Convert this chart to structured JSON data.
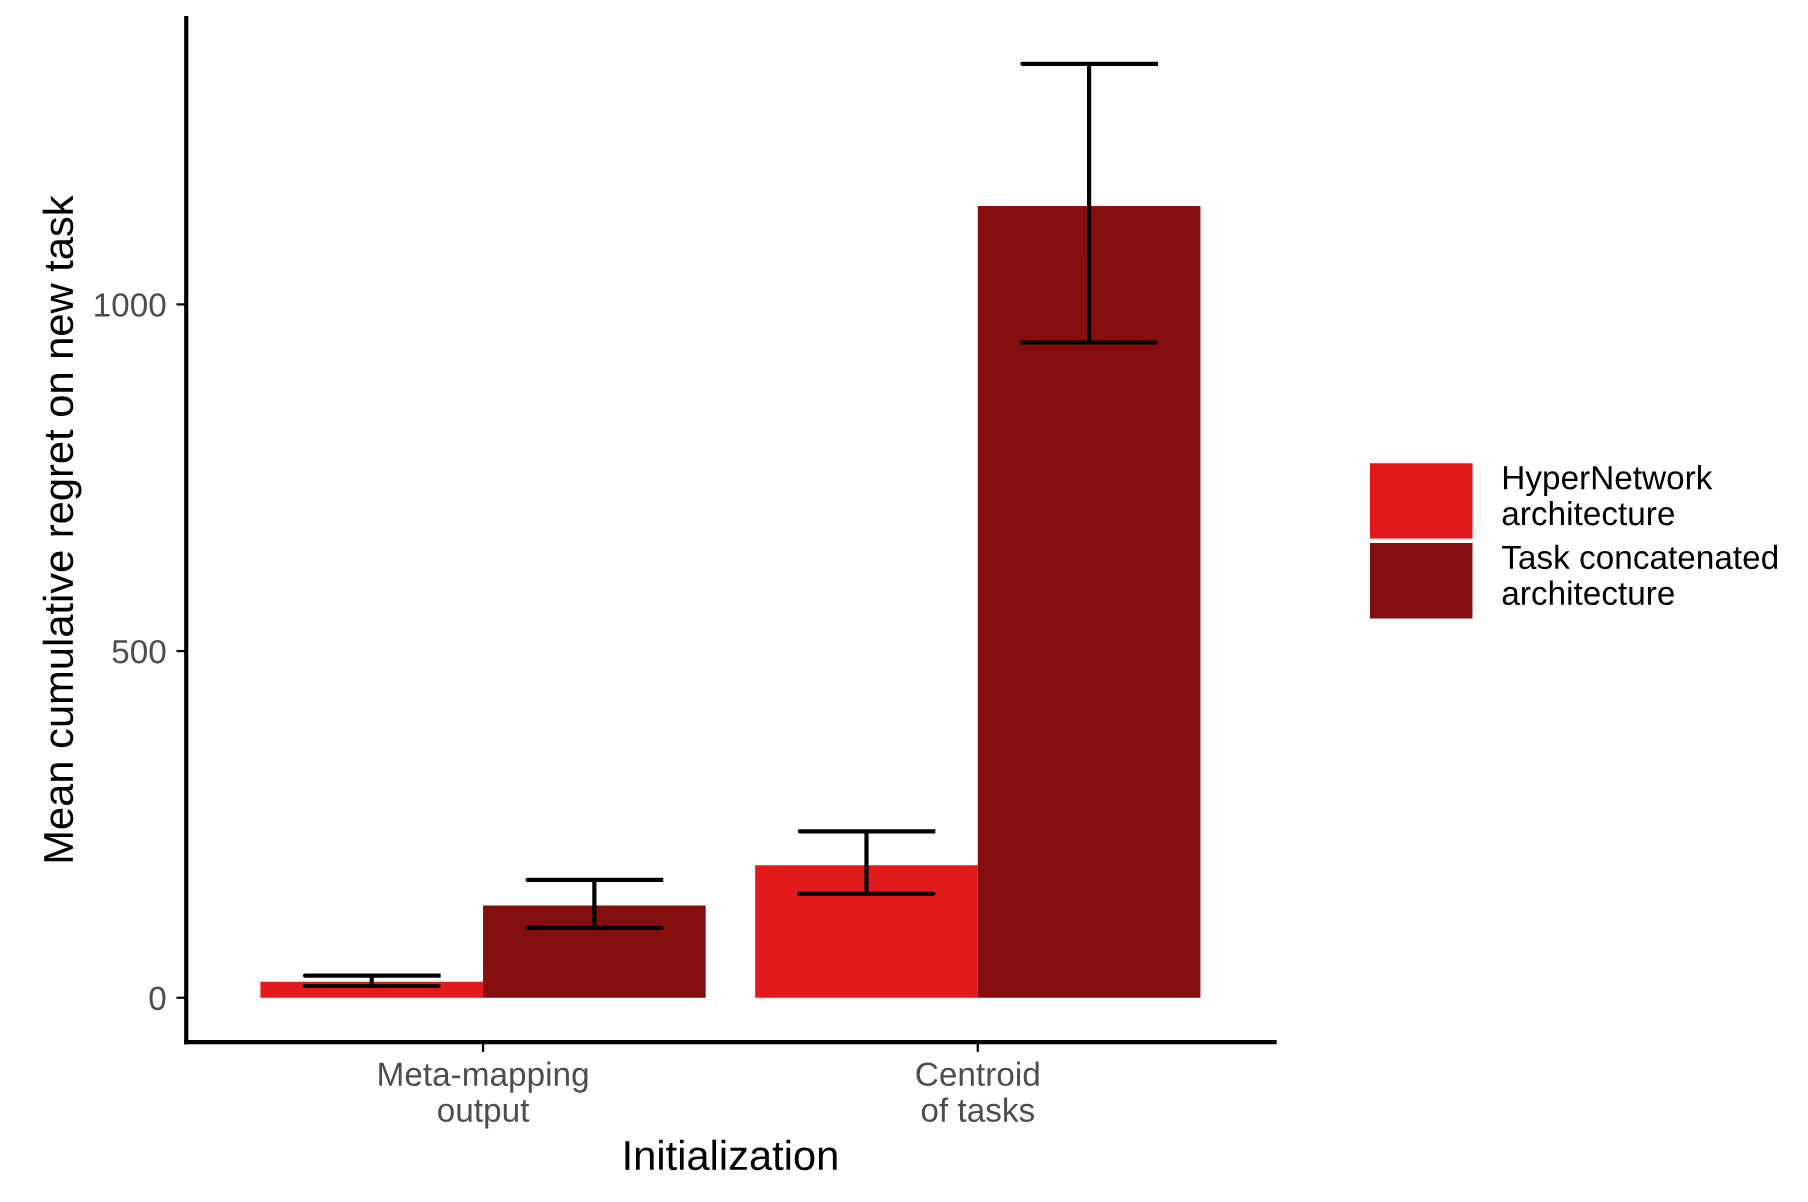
{
  "chart_data": {
    "type": "bar",
    "xlabel": "Initialization",
    "ylabel": "Mean cumulative regret on new task",
    "categories": [
      "Meta-mapping\noutput",
      "Centroid\nof tasks"
    ],
    "series": [
      {
        "name": "HyperNetwork\narchitecture",
        "color": "#e31a1c",
        "values": [
          23,
          191
        ],
        "errors": [
          [
            17,
            32
          ],
          [
            150,
            240
          ]
        ]
      },
      {
        "name": "Task concatenated\narchitecture",
        "color": "#850f0f",
        "values": [
          133,
          1142
        ],
        "errors": [
          [
            101,
            170
          ],
          [
            945,
            1347
          ]
        ]
      }
    ],
    "ylim": [
      -64,
      1413
    ],
    "yticks": [
      0,
      500,
      1000
    ],
    "grid": false,
    "legend": "right"
  }
}
